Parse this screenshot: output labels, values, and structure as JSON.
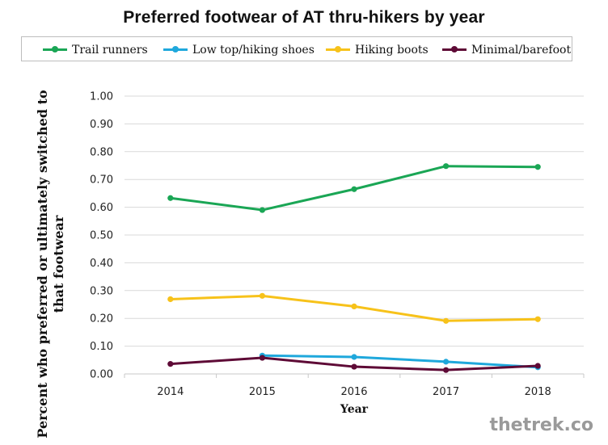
{
  "chart_data": {
    "type": "line",
    "title": "Preferred footwear of AT thru-hikers by year",
    "xlabel": "Year",
    "ylabel": "Percent who preferred or ultimately switched to that footwear",
    "categories": [
      "2014",
      "2015",
      "2016",
      "2017",
      "2018"
    ],
    "ylim": [
      0,
      1
    ],
    "yticks": [
      "0.00",
      "0.10",
      "0.20",
      "0.30",
      "0.40",
      "0.50",
      "0.60",
      "0.70",
      "0.80",
      "0.90",
      "1.00"
    ],
    "grid": true,
    "legend_position": "top",
    "series": [
      {
        "name": "Trail runners",
        "color": "#1aa655",
        "values": [
          0.633,
          0.59,
          0.665,
          0.748,
          0.745
        ]
      },
      {
        "name": "Low top/hiking shoes",
        "color": "#1fa8dc",
        "values": [
          null,
          0.066,
          0.061,
          0.044,
          0.024
        ]
      },
      {
        "name": "Hiking boots",
        "color": "#f7c21a",
        "values": [
          0.269,
          0.281,
          0.243,
          0.191,
          0.197
        ]
      },
      {
        "name": "Minimal/barefoot",
        "color": "#5e0a36",
        "values": [
          0.036,
          0.058,
          0.026,
          0.014,
          0.029
        ]
      }
    ]
  },
  "watermark": "thetrek.co"
}
